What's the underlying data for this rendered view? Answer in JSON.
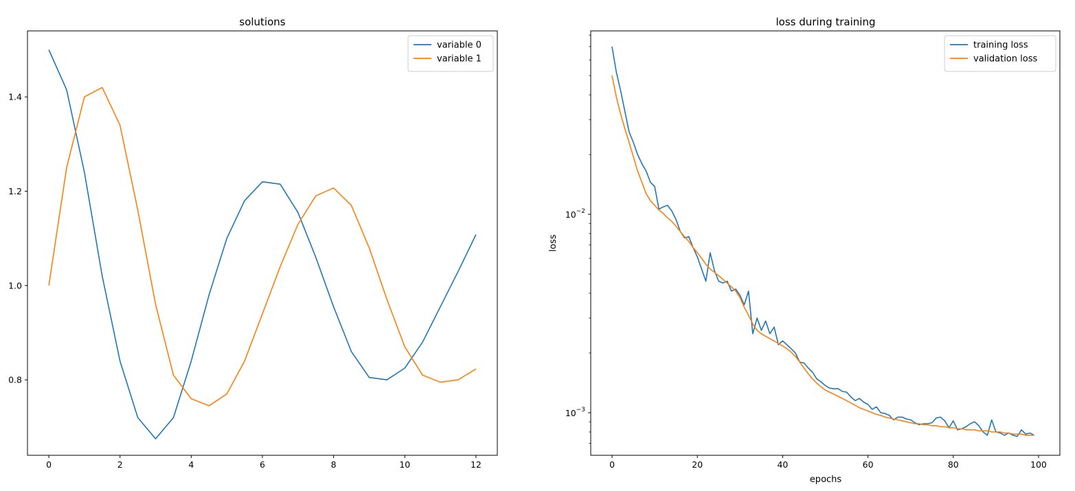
{
  "chart_data": [
    {
      "type": "line",
      "title": "solutions",
      "xlabel": "",
      "ylabel": "",
      "xlim": [
        -0.6,
        12.6
      ],
      "ylim": [
        0.64,
        1.54
      ],
      "yscale": "linear",
      "xticks": [
        0,
        2,
        4,
        6,
        8,
        10,
        12
      ],
      "yticks": [
        0.8,
        1.0,
        1.2,
        1.4
      ],
      "xtick_labels": [
        "0",
        "2",
        "4",
        "6",
        "8",
        "10",
        "12"
      ],
      "ytick_labels": [
        "0.8",
        "1.0",
        "1.2",
        "1.4"
      ],
      "grid": false,
      "legend_position": "top-right",
      "series": [
        {
          "name": "variable 0",
          "color": "#1f77b4",
          "x": [
            0,
            0.5,
            1,
            1.5,
            2,
            2.5,
            3,
            3.5,
            4,
            4.5,
            5,
            5.5,
            6,
            6.5,
            7,
            7.5,
            8,
            8.5,
            9,
            9.5,
            10,
            10.5,
            11,
            11.5,
            12
          ],
          "values": [
            1.5,
            1.415,
            1.24,
            1.02,
            0.84,
            0.72,
            0.675,
            0.72,
            0.84,
            0.98,
            1.1,
            1.18,
            1.22,
            1.215,
            1.155,
            1.06,
            0.955,
            0.86,
            0.805,
            0.8,
            0.825,
            0.88,
            0.955,
            1.03,
            1.108
          ]
        },
        {
          "name": "variable 1",
          "color": "#ff7f0e",
          "x": [
            0,
            0.5,
            1,
            1.5,
            2,
            2.5,
            3,
            3.5,
            4,
            4.5,
            5,
            5.5,
            6,
            6.5,
            7,
            7.5,
            8,
            8.5,
            9,
            9.5,
            10,
            10.5,
            11,
            11.5,
            12
          ],
          "values": [
            1.0,
            1.25,
            1.4,
            1.42,
            1.34,
            1.16,
            0.96,
            0.81,
            0.76,
            0.745,
            0.77,
            0.84,
            0.94,
            1.04,
            1.13,
            1.19,
            1.207,
            1.17,
            1.08,
            0.97,
            0.87,
            0.81,
            0.795,
            0.8,
            0.823
          ]
        }
      ]
    },
    {
      "type": "line",
      "title": "loss during training",
      "xlabel": "epochs",
      "ylabel": "loss",
      "xlim": [
        -5,
        105
      ],
      "ylim": [
        0.00061,
        0.084
      ],
      "yscale": "log",
      "xticks": [
        0,
        20,
        40,
        60,
        80,
        100
      ],
      "xtick_labels": [
        "0",
        "20",
        "40",
        "60",
        "80",
        "100"
      ],
      "ytick_values": [
        0.01,
        0.001
      ],
      "ytick_labels": [
        {
          "base": "10",
          "exp": "−2"
        },
        {
          "base": "10",
          "exp": "−3"
        }
      ],
      "grid": false,
      "legend_position": "top-right",
      "series": [
        {
          "name": "training loss",
          "color": "#1f77b4",
          "x": [
            0,
            1,
            2,
            3,
            4,
            5,
            6,
            7,
            8,
            9,
            10,
            11,
            12,
            13,
            14,
            15,
            16,
            17,
            18,
            19,
            20,
            21,
            22,
            23,
            24,
            25,
            26,
            27,
            28,
            29,
            30,
            31,
            32,
            33,
            34,
            35,
            36,
            37,
            38,
            39,
            40,
            41,
            42,
            43,
            44,
            45,
            46,
            47,
            48,
            49,
            50,
            51,
            52,
            53,
            54,
            55,
            56,
            57,
            58,
            59,
            60,
            61,
            62,
            63,
            64,
            65,
            66,
            67,
            68,
            69,
            70,
            71,
            72,
            73,
            74,
            75,
            76,
            77,
            78,
            79,
            80,
            81,
            82,
            83,
            84,
            85,
            86,
            87,
            88,
            89,
            90,
            91,
            92,
            93,
            94,
            95,
            96,
            97,
            98,
            99
          ],
          "values": [
            0.07,
            0.052,
            0.042,
            0.033,
            0.026,
            0.023,
            0.02,
            0.018,
            0.0165,
            0.0145,
            0.0138,
            0.0106,
            0.0109,
            0.0111,
            0.0104,
            0.0094,
            0.0082,
            0.0076,
            0.0077,
            0.0068,
            0.0061,
            0.0053,
            0.0046,
            0.0064,
            0.0052,
            0.0046,
            0.0045,
            0.0046,
            0.0041,
            0.0042,
            0.0039,
            0.0035,
            0.0041,
            0.0025,
            0.003,
            0.0026,
            0.0029,
            0.0025,
            0.0027,
            0.0022,
            0.0023,
            0.0022,
            0.0021,
            0.002,
            0.0018,
            0.00178,
            0.00168,
            0.0016,
            0.00148,
            0.00143,
            0.00137,
            0.00133,
            0.00132,
            0.00132,
            0.00128,
            0.00127,
            0.0012,
            0.00115,
            0.00118,
            0.00113,
            0.0011,
            0.00104,
            0.00107,
            0.001,
            0.00099,
            0.00097,
            0.00092,
            0.00095,
            0.00095,
            0.00093,
            0.00092,
            0.00089,
            0.00087,
            0.00088,
            0.00088,
            0.00089,
            0.00094,
            0.00095,
            0.00091,
            0.00084,
            0.00091,
            0.00082,
            0.00083,
            0.00085,
            0.00088,
            0.0009,
            0.00086,
            0.0008,
            0.00077,
            0.00092,
            0.0008,
            0.00079,
            0.00077,
            0.00079,
            0.00077,
            0.00076,
            0.00082,
            0.00078,
            0.00079,
            0.00077
          ]
        },
        {
          "name": "validation loss",
          "color": "#ff7f0e",
          "x": [
            0,
            1,
            2,
            3,
            4,
            5,
            6,
            7,
            8,
            9,
            10,
            11,
            12,
            13,
            14,
            15,
            16,
            17,
            18,
            19,
            20,
            21,
            22,
            23,
            24,
            25,
            26,
            27,
            28,
            29,
            30,
            31,
            32,
            33,
            34,
            35,
            36,
            37,
            38,
            39,
            40,
            41,
            42,
            43,
            44,
            45,
            46,
            47,
            48,
            49,
            50,
            51,
            52,
            53,
            54,
            55,
            56,
            57,
            58,
            59,
            60,
            61,
            62,
            63,
            64,
            65,
            66,
            67,
            68,
            69,
            70,
            71,
            72,
            73,
            74,
            75,
            76,
            77,
            78,
            79,
            80,
            81,
            82,
            83,
            84,
            85,
            86,
            87,
            88,
            89,
            90,
            91,
            92,
            93,
            94,
            95,
            96,
            97,
            98,
            99
          ],
          "values": [
            0.05,
            0.039,
            0.032,
            0.027,
            0.023,
            0.0195,
            0.0165,
            0.0145,
            0.0127,
            0.0117,
            0.0111,
            0.0105,
            0.0101,
            0.0096,
            0.0092,
            0.0087,
            0.0082,
            0.0077,
            0.0073,
            0.0068,
            0.0064,
            0.006,
            0.0056,
            0.0053,
            0.0051,
            0.0049,
            0.0047,
            0.0045,
            0.0043,
            0.0041,
            0.0038,
            0.0034,
            0.0031,
            0.0028,
            0.0026,
            0.0025,
            0.00243,
            0.00236,
            0.0023,
            0.00223,
            0.00217,
            0.0021,
            0.00202,
            0.00192,
            0.0018,
            0.00168,
            0.00157,
            0.00148,
            0.00141,
            0.00135,
            0.0013,
            0.00127,
            0.00124,
            0.00121,
            0.00118,
            0.00115,
            0.00112,
            0.00109,
            0.00106,
            0.00104,
            0.00102,
            0.001,
            0.00098,
            0.00097,
            0.00095,
            0.00094,
            0.00093,
            0.00092,
            0.00091,
            0.0009,
            0.00089,
            0.00088,
            0.00088,
            0.00087,
            0.00087,
            0.00086,
            0.00086,
            0.00085,
            0.00085,
            0.00084,
            0.00084,
            0.00083,
            0.00083,
            0.00082,
            0.00082,
            0.00082,
            0.00081,
            0.00081,
            0.00081,
            0.0008,
            0.0008,
            0.0008,
            0.00079,
            0.00079,
            0.00078,
            0.00078,
            0.00078,
            0.00077,
            0.00077,
            0.00077
          ]
        }
      ]
    }
  ]
}
